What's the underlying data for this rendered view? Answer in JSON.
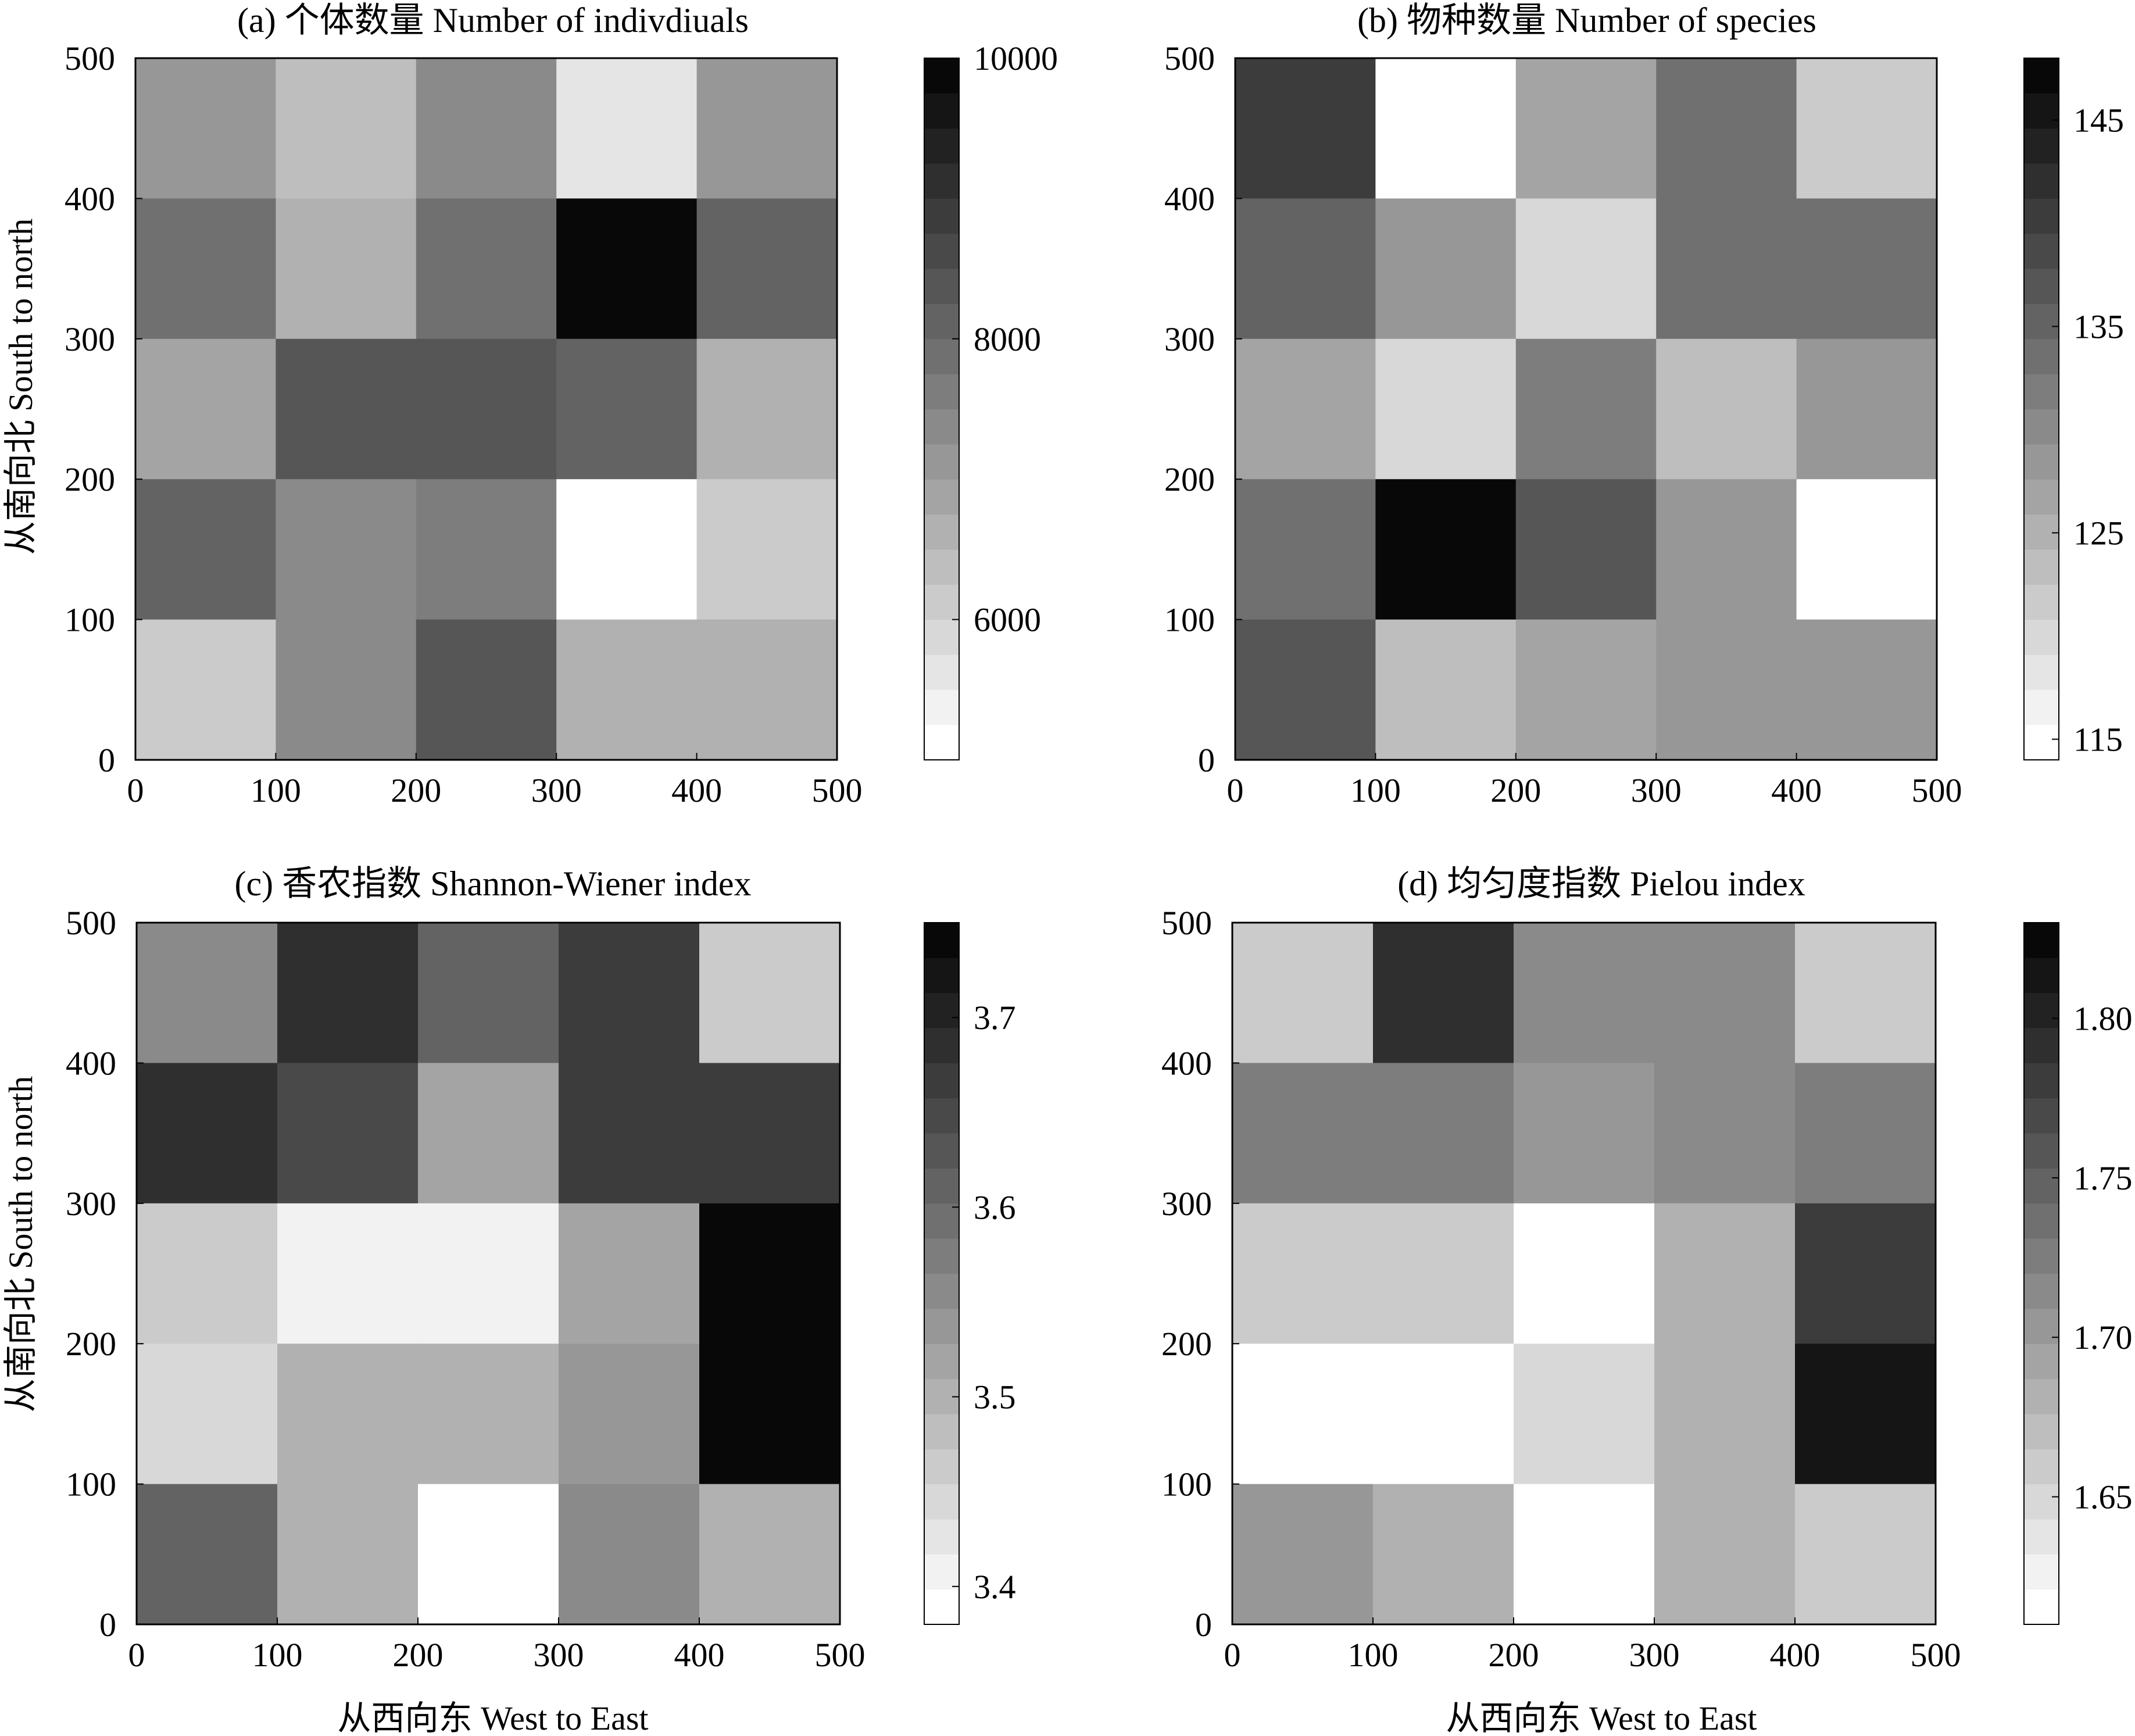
{
  "figure": {
    "xlabel": "从西向东 West to East",
    "ylabel": "从南向北 South to north"
  },
  "chart_data": [
    {
      "type": "heatmap",
      "title": "(a) 个体数量 Number of indivdiuals",
      "x_ticks": [
        0,
        100,
        200,
        300,
        400,
        500
      ],
      "y_ticks": [
        0,
        100,
        200,
        300,
        400,
        500
      ],
      "xlim": [
        0,
        500
      ],
      "ylim": [
        0,
        500
      ],
      "rows_north_to_south": [
        [
          7000,
          6250,
          7250,
          5650,
          7000
        ],
        [
          7750,
          6650,
          7750,
          9850,
          8200
        ],
        [
          6900,
          8400,
          8400,
          8000,
          6650
        ],
        [
          8000,
          7250,
          7600,
          5000,
          6000
        ],
        [
          6100,
          7250,
          8400,
          6650,
          6650
        ]
      ],
      "colorbar": {
        "min": 5000,
        "max": 10000,
        "ticks": [
          10000,
          8000,
          6000
        ],
        "tick_labels": [
          "10000",
          "8000",
          "6000"
        ]
      }
    },
    {
      "type": "heatmap",
      "title": "(b) 物种数量 Number of species",
      "x_ticks": [
        0,
        100,
        200,
        300,
        400,
        500
      ],
      "y_ticks": [
        0,
        100,
        200,
        300,
        400,
        500
      ],
      "xlim": [
        0,
        500
      ],
      "ylim": [
        0,
        500
      ],
      "rows_north_to_south": [
        [
          141,
          114,
          127,
          134,
          122
        ],
        [
          136,
          128,
          120,
          134,
          134
        ],
        [
          127,
          120,
          132,
          123,
          128
        ],
        [
          133,
          147,
          137,
          128,
          114
        ],
        [
          137,
          123,
          126,
          129,
          128
        ]
      ],
      "colorbar": {
        "min": 114,
        "max": 148,
        "ticks": [
          145,
          135,
          125,
          115
        ],
        "tick_labels": [
          "145",
          "135",
          "125",
          "115"
        ]
      }
    },
    {
      "type": "heatmap",
      "title": "(c) 香农指数 Shannon-Wiener index",
      "x_ticks": [
        0,
        100,
        200,
        300,
        400,
        500
      ],
      "y_ticks": [
        0,
        100,
        200,
        300,
        400,
        500
      ],
      "xlim": [
        0,
        500
      ],
      "ylim": [
        0,
        500
      ],
      "rows_north_to_south": [
        [
          3.56,
          3.68,
          3.62,
          3.66,
          3.47
        ],
        [
          3.69,
          3.64,
          3.51,
          3.66,
          3.66
        ],
        [
          3.46,
          3.41,
          3.41,
          3.51,
          3.74
        ],
        [
          3.45,
          3.5,
          3.5,
          3.54,
          3.74
        ],
        [
          3.62,
          3.5,
          3.38,
          3.55,
          3.5
        ]
      ],
      "colorbar": {
        "min": 3.38,
        "max": 3.75,
        "ticks": [
          3.7,
          3.6,
          3.5,
          3.4
        ],
        "tick_labels": [
          "3.7",
          "3.6",
          "3.5",
          "3.4"
        ]
      }
    },
    {
      "type": "heatmap",
      "title": "(d) 均匀度指数 Pielou index",
      "x_ticks": [
        0,
        100,
        200,
        300,
        400,
        500
      ],
      "y_ticks": [
        0,
        100,
        200,
        300,
        400,
        500
      ],
      "xlim": [
        0,
        500
      ],
      "ylim": [
        0,
        500
      ],
      "rows_north_to_south": [
        [
          1.66,
          1.79,
          1.715,
          1.715,
          1.665
        ],
        [
          1.73,
          1.73,
          1.705,
          1.715,
          1.73
        ],
        [
          1.665,
          1.665,
          1.61,
          1.68,
          1.78
        ],
        [
          1.61,
          1.61,
          1.645,
          1.68,
          1.815
        ],
        [
          1.705,
          1.685,
          1.61,
          1.68,
          1.665
        ]
      ],
      "colorbar": {
        "min": 1.61,
        "max": 1.83,
        "ticks": [
          1.8,
          1.75,
          1.7,
          1.65
        ],
        "tick_labels": [
          "1.80",
          "1.75",
          "1.70",
          "1.65"
        ]
      }
    }
  ]
}
